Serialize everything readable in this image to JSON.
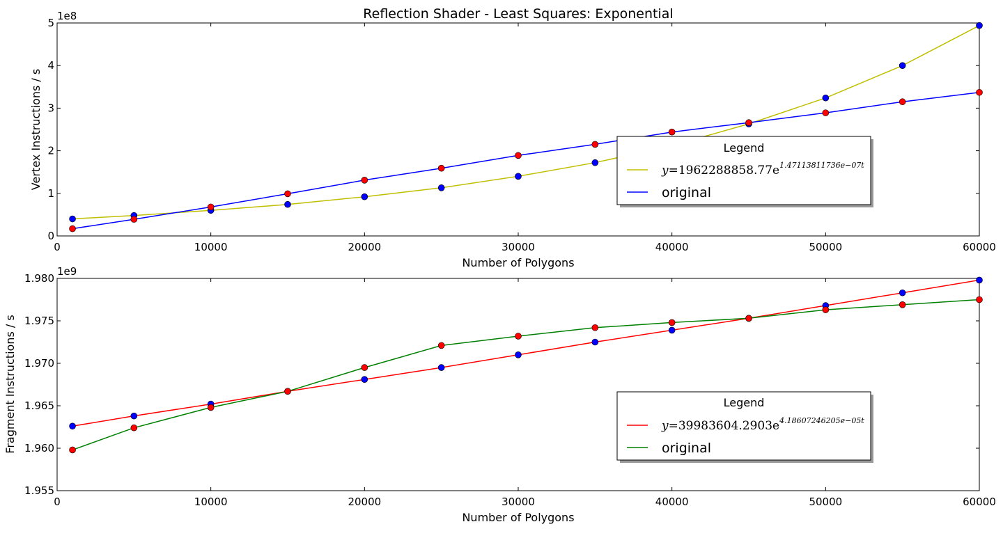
{
  "chart_data": [
    {
      "type": "line",
      "title": "Reflection Shader - Least Squares: Exponential",
      "xlabel": "Number of Polygons",
      "ylabel": "Vertex Instructions / s",
      "offset_text": "1e8",
      "xlim": [
        0,
        60000
      ],
      "ylim": [
        0,
        5
      ],
      "xticks": [
        0,
        10000,
        20000,
        30000,
        40000,
        50000,
        60000
      ],
      "yticks": [
        0,
        1,
        2,
        3,
        4,
        5
      ],
      "xtick_labels": [
        "0",
        "10000",
        "20000",
        "30000",
        "40000",
        "50000",
        "60000"
      ],
      "ytick_labels": [
        "0",
        "1",
        "2",
        "3",
        "4",
        "5"
      ],
      "x": [
        1000,
        5000,
        10000,
        15000,
        20000,
        25000,
        30000,
        35000,
        40000,
        45000,
        50000,
        55000,
        60000
      ],
      "series": [
        {
          "name": "y=1962288858.77e^1.47113811736e-07t",
          "color": "#bfbf00",
          "marker_color": "#0000ff",
          "values": [
            0.4,
            0.48,
            0.6,
            0.74,
            0.92,
            1.13,
            1.4,
            1.72,
            2.12,
            2.63,
            3.24,
            4.0,
            4.94
          ]
        },
        {
          "name": "original",
          "color": "#0000ff",
          "marker_color": "#ff0000",
          "values": [
            0.17,
            0.39,
            0.68,
            0.99,
            1.31,
            1.59,
            1.89,
            2.15,
            2.44,
            2.66,
            2.89,
            3.15,
            3.37
          ]
        }
      ],
      "legend": {
        "title": "Legend",
        "placement": "center-right",
        "fit_label": {
          "prefix": "y",
          "eq": "=1962288858.77e",
          "exp": "1.47113811736e−07t"
        },
        "original_label": "original"
      }
    },
    {
      "type": "line",
      "xlabel": "Number of Polygons",
      "ylabel": "Fragment Instructions / s",
      "offset_text": "1e9",
      "xlim": [
        0,
        60000
      ],
      "ylim": [
        1.955,
        1.98
      ],
      "xticks": [
        0,
        10000,
        20000,
        30000,
        40000,
        50000,
        60000
      ],
      "yticks": [
        1.955,
        1.96,
        1.965,
        1.97,
        1.975,
        1.98
      ],
      "xtick_labels": [
        "0",
        "10000",
        "20000",
        "30000",
        "40000",
        "50000",
        "60000"
      ],
      "ytick_labels": [
        "1.955",
        "1.960",
        "1.965",
        "1.970",
        "1.975",
        "1.980"
      ],
      "x": [
        1000,
        5000,
        10000,
        15000,
        20000,
        25000,
        30000,
        35000,
        40000,
        45000,
        50000,
        55000,
        60000
      ],
      "series": [
        {
          "name": "y=39983604.2903e^4.18607246205e-05t",
          "color": "#ff0000",
          "marker_color": "#0000ff",
          "values": [
            1.9626,
            1.9638,
            1.9652,
            1.9667,
            1.9681,
            1.9695,
            1.971,
            1.9725,
            1.9739,
            1.9753,
            1.9768,
            1.9783,
            1.9798
          ]
        },
        {
          "name": "original",
          "color": "#008000",
          "marker_color": "#ff0000",
          "values": [
            1.9598,
            1.9624,
            1.9648,
            1.9667,
            1.9695,
            1.9721,
            1.9732,
            1.9742,
            1.9748,
            1.9753,
            1.9763,
            1.9769,
            1.9775
          ]
        }
      ],
      "legend": {
        "title": "Legend",
        "placement": "center-right",
        "fit_label": {
          "prefix": "y",
          "eq": "=39983604.2903e",
          "exp": "4.18607246205e−05t"
        },
        "original_label": "original"
      }
    }
  ]
}
